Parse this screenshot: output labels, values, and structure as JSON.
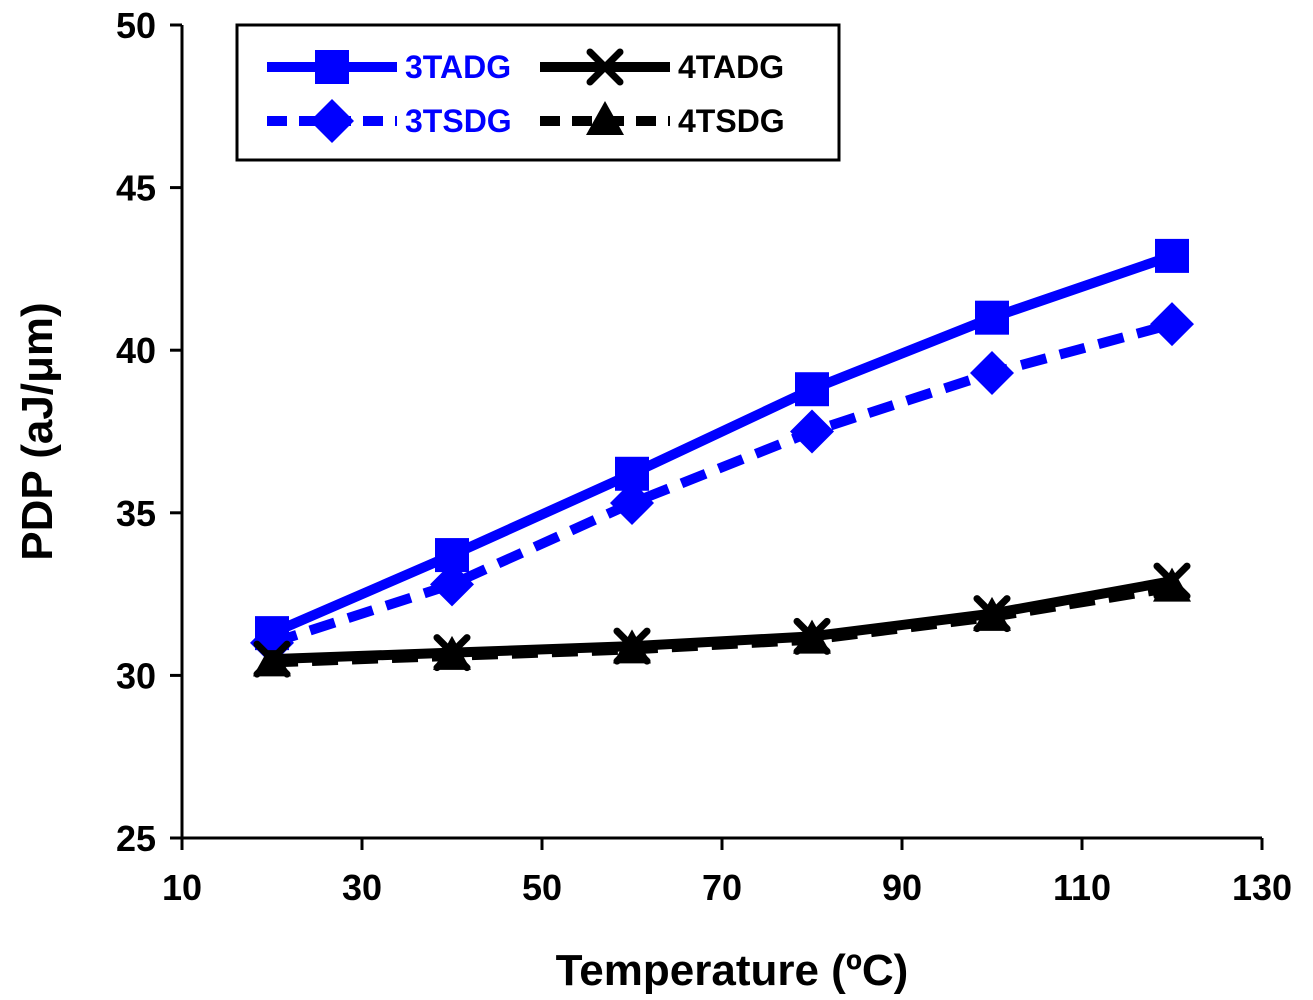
{
  "chart_data": {
    "type": "line",
    "title": "",
    "xlabel": "Temperature (ºC)",
    "ylabel": "PDP (aJ/μm)",
    "xlim": [
      10,
      130
    ],
    "ylim": [
      25,
      50
    ],
    "xticks": [
      10,
      30,
      50,
      70,
      90,
      110,
      130
    ],
    "yticks": [
      25,
      30,
      35,
      40,
      45,
      50
    ],
    "x": [
      20,
      40,
      60,
      80,
      100,
      120
    ],
    "legend_position": "top-left",
    "grid": false,
    "series": [
      {
        "name": "3TADG",
        "values": [
          31.3,
          33.7,
          36.2,
          38.8,
          41.0,
          42.9
        ],
        "color": "#0000ff",
        "dash": "solid",
        "marker": "square"
      },
      {
        "name": "4TADG",
        "values": [
          30.5,
          30.7,
          30.9,
          31.2,
          31.9,
          32.9
        ],
        "color": "#000000",
        "dash": "solid",
        "marker": "x"
      },
      {
        "name": "3TSDG",
        "values": [
          31.0,
          32.8,
          35.3,
          37.5,
          39.3,
          40.8
        ],
        "color": "#0000ff",
        "dash": "dashed",
        "marker": "diamond"
      },
      {
        "name": "4TSDG",
        "values": [
          30.4,
          30.6,
          30.8,
          31.1,
          31.8,
          32.7
        ],
        "color": "#000000",
        "dash": "dashed",
        "marker": "triangle"
      }
    ]
  }
}
